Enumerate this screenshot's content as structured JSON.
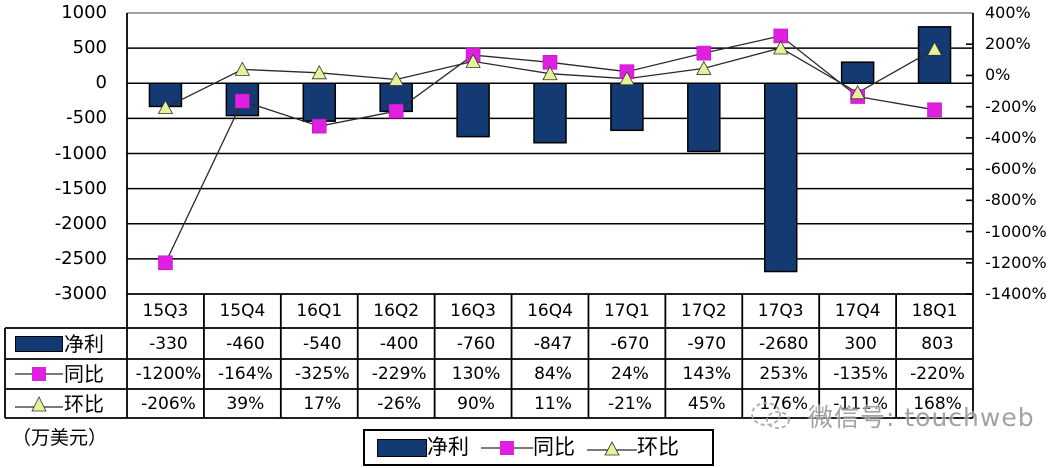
{
  "chart_data": {
    "type": "bar+line",
    "title": "",
    "categories": [
      "15Q3",
      "15Q4",
      "16Q1",
      "16Q2",
      "16Q3",
      "16Q4",
      "17Q1",
      "17Q2",
      "17Q3",
      "17Q4",
      "18Q1"
    ],
    "series": [
      {
        "name": "净利",
        "type": "bar",
        "axis": "left",
        "values": [
          -330,
          -460,
          -540,
          -400,
          -760,
          -847,
          -670,
          -970,
          -2680,
          300,
          803
        ],
        "color": "#133a72"
      },
      {
        "name": "同比",
        "type": "line",
        "axis": "right",
        "unit": "%",
        "marker": "square",
        "values": [
          -1200,
          -164,
          -325,
          -229,
          130,
          84,
          24,
          143,
          253,
          -135,
          -220
        ],
        "color": "#e020e0"
      },
      {
        "name": "环比",
        "type": "line",
        "axis": "right",
        "unit": "%",
        "marker": "triangle",
        "values": [
          -206,
          39,
          17,
          -26,
          90,
          11,
          -21,
          45,
          176,
          -111,
          168
        ],
        "color": "#e6f29a"
      }
    ],
    "left_axis": {
      "label": "（万美元）",
      "ylim": [
        -3000,
        1000
      ],
      "ticks": [
        1000,
        500,
        0,
        -500,
        -1000,
        -1500,
        -2000,
        -2500,
        -3000
      ]
    },
    "right_axis": {
      "ylim": [
        -1400,
        400
      ],
      "ticks": [
        400,
        200,
        0,
        -200,
        -400,
        -600,
        -800,
        -1000,
        -1200,
        -1400
      ],
      "tick_labels": [
        "400%",
        "200%",
        "0%",
        "-200%",
        "-400%",
        "-600%",
        "-800%",
        "-1000%",
        "-1200%",
        "-1400%"
      ]
    },
    "grid": true,
    "data_table": true,
    "legend": {
      "position": "bottom",
      "entries": [
        "净利",
        "同比",
        "环比"
      ]
    }
  },
  "table": {
    "header": [
      "15Q3",
      "15Q4",
      "16Q1",
      "16Q2",
      "16Q3",
      "16Q4",
      "17Q1",
      "17Q2",
      "17Q3",
      "17Q4",
      "18Q1"
    ],
    "rows": [
      {
        "label": "净利",
        "marker": "bar",
        "values": [
          "-330",
          "-460",
          "-540",
          "-400",
          "-760",
          "-847",
          "-670",
          "-970",
          "-2680",
          "300",
          "803"
        ]
      },
      {
        "label": "同比",
        "marker": "square",
        "values": [
          "-1200%",
          "-164%",
          "-325%",
          "-229%",
          "130%",
          "84%",
          "24%",
          "143%",
          "253%",
          "-135%",
          "-220%"
        ]
      },
      {
        "label": "环比",
        "marker": "triangle",
        "values": [
          "-206%",
          "39%",
          "17%",
          "-26%",
          "90%",
          "11%",
          "-21%",
          "45%",
          "176%",
          "-111%",
          "168%"
        ]
      }
    ]
  },
  "unit_label": "（万美元）",
  "legend": {
    "items": [
      {
        "label": "净利",
        "icon": "bar-swatch-icon"
      },
      {
        "label": "同比",
        "icon": "square-marker-icon"
      },
      {
        "label": "环比",
        "icon": "triangle-marker-icon"
      }
    ]
  },
  "watermark": {
    "text": "微信号: touchweb",
    "icon": "wechat-icon"
  },
  "colors": {
    "bar": "#133a72",
    "yoy": "#e020e0",
    "qoq": "#e6f29a",
    "grid": "#000000",
    "line": "#2a2a2a"
  }
}
